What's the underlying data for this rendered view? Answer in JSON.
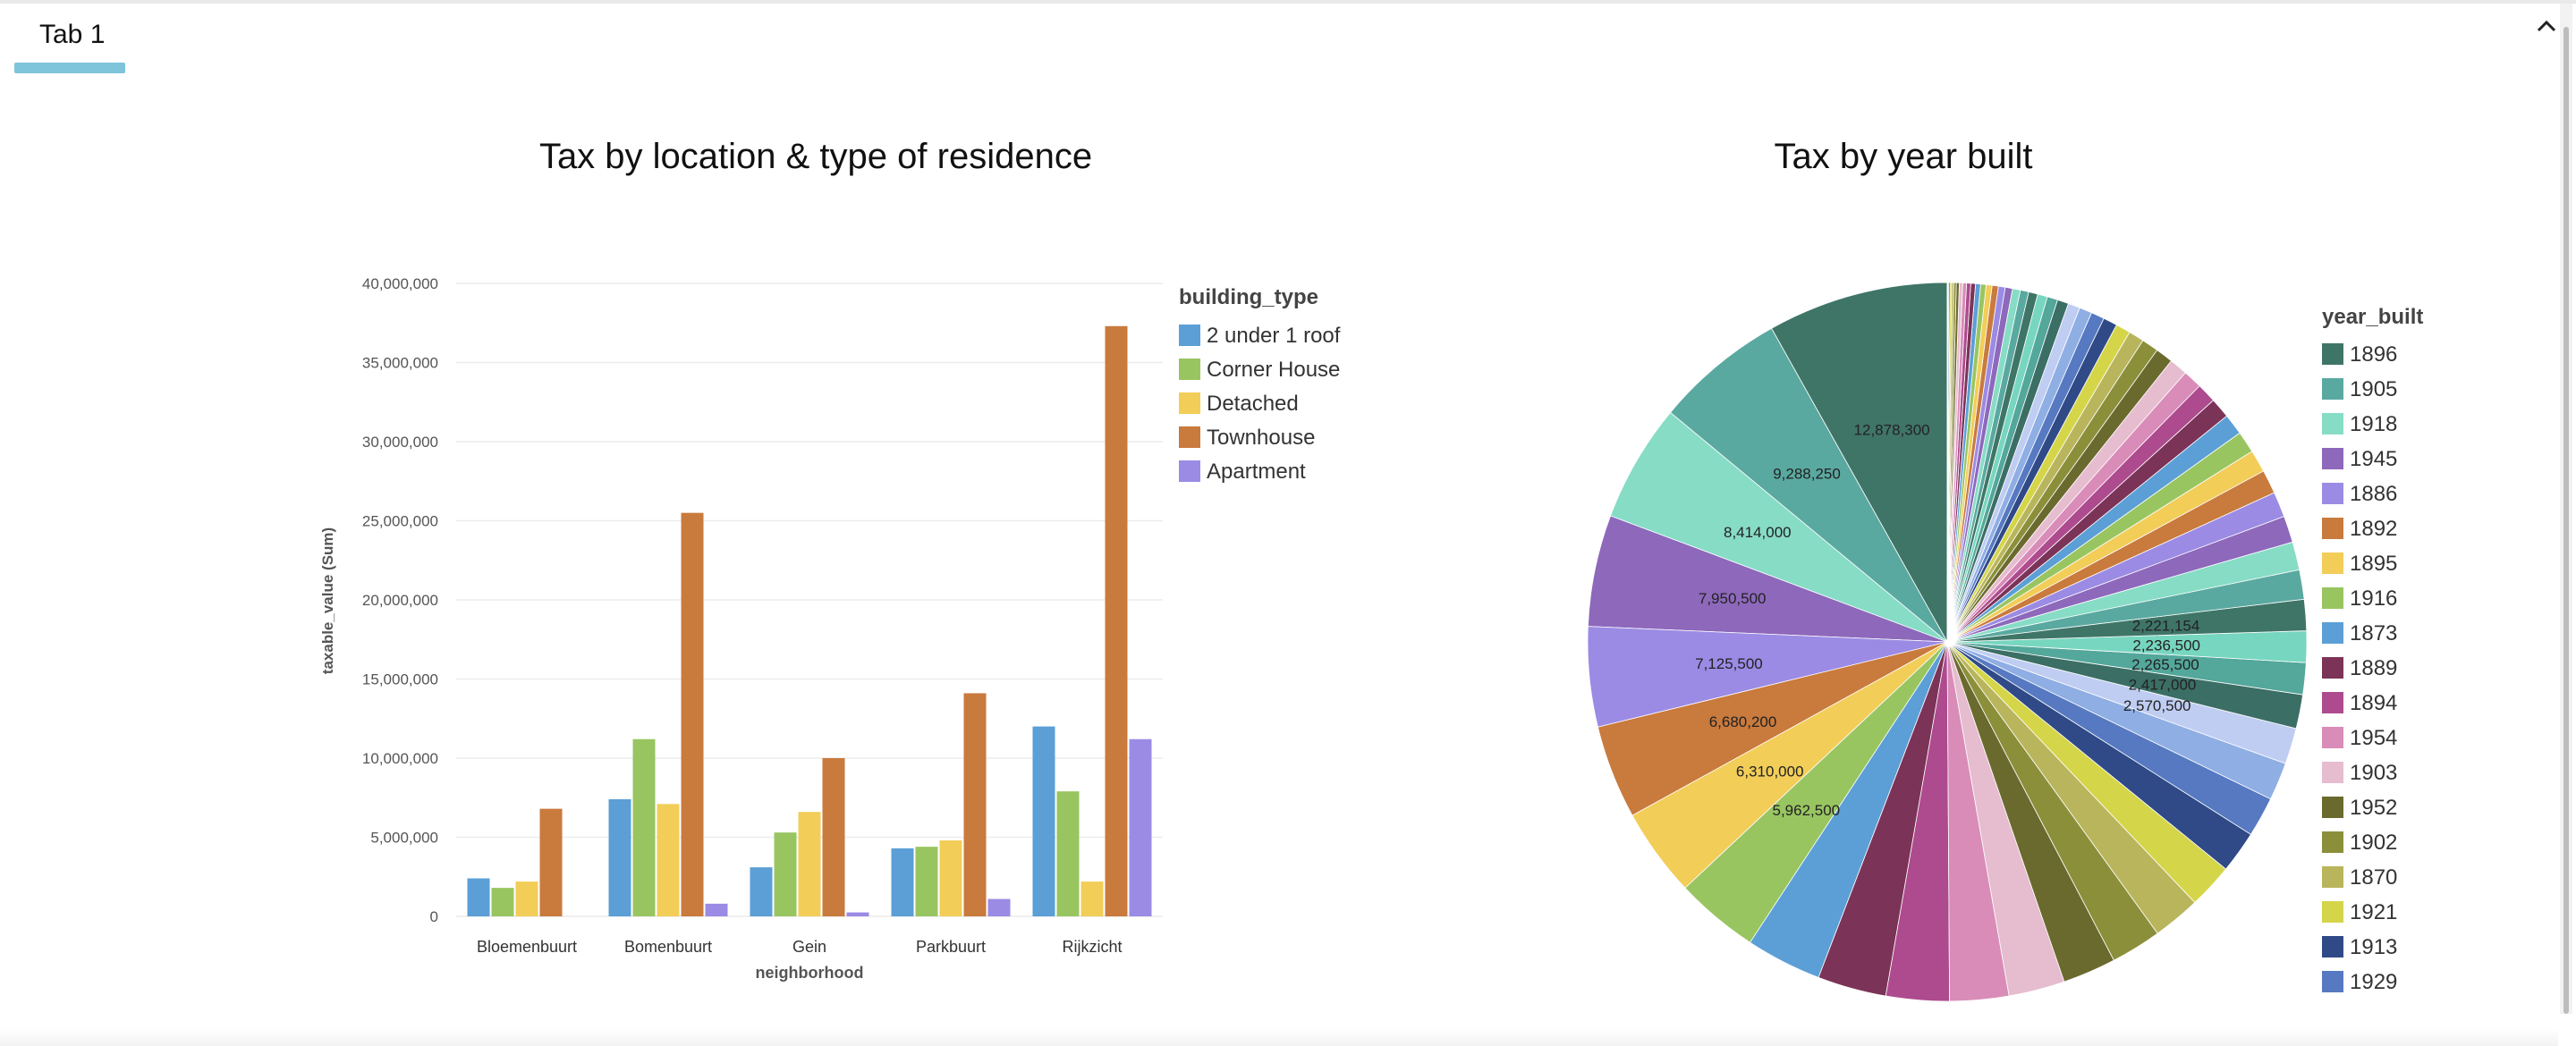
{
  "tabs": [
    {
      "label": "Tab 1"
    }
  ],
  "colors": {
    "tab_accent": "#7ec5dc"
  },
  "icons": {
    "collapse": "chevron-up-icon"
  },
  "chart_data": [
    {
      "type": "bar",
      "title": "Tax by location & type of residence",
      "xlabel": "neighborhood",
      "ylabel": "taxable_value (Sum)",
      "ylim": [
        0,
        40000000
      ],
      "yticks": [
        "0",
        "5,000,000",
        "10,000,000",
        "15,000,000",
        "20,000,000",
        "25,000,000",
        "30,000,000",
        "35,000,000",
        "40,000,000"
      ],
      "legend_title": "building_type",
      "legend_position": "right",
      "grid": true,
      "categories": [
        "Bloemenbuurt",
        "Bomenbuurt",
        "Gein",
        "Parkbuurt",
        "Rijkzicht"
      ],
      "series": [
        {
          "name": "2 under 1 roof",
          "color": "#5b9fd6",
          "values": [
            2400000,
            7400000,
            3100000,
            4300000,
            12000000
          ]
        },
        {
          "name": "Corner House",
          "color": "#99c561",
          "values": [
            1800000,
            11200000,
            5300000,
            4400000,
            7900000
          ]
        },
        {
          "name": "Detached",
          "color": "#f2cd58",
          "values": [
            2200000,
            7100000,
            6600000,
            4800000,
            2200000
          ]
        },
        {
          "name": "Townhouse",
          "color": "#c97a3d",
          "values": [
            6800000,
            25500000,
            10000000,
            14100000,
            37300000
          ]
        },
        {
          "name": "Apartment",
          "color": "#9b8be4",
          "values": [
            0,
            800000,
            250000,
            1100000,
            11200000
          ]
        }
      ]
    },
    {
      "type": "pie",
      "title": "Tax by year built",
      "legend_title": "year_built",
      "legend_position": "right",
      "labels": [
        "1896",
        "1905",
        "1918",
        "1945",
        "1886",
        "1892",
        "1895",
        "1916",
        "1873",
        "1889",
        "1894",
        "1954",
        "1903",
        "1952",
        "1902",
        "1870",
        "1921",
        "1913",
        "1929"
      ],
      "label_texts": [
        "12,878,300",
        "9,288,250",
        "8,414,000",
        "7,950,500",
        "7,125,500",
        "6,680,200",
        "6,310,000",
        "5,962,500",
        "2,570,500",
        "2,417,000",
        "2,265,500",
        "2,236,500",
        "2,221,154"
      ],
      "slices": [
        12878300,
        9288250,
        8414000,
        7950500,
        7125500,
        6680200,
        6310000,
        5962500,
        5400000,
        4900000,
        4500000,
        4200000,
        4000000,
        3800000,
        3600000,
        3400000,
        3200000,
        3000000,
        2850000,
        2700000,
        2570500,
        2417000,
        2265500,
        2236500,
        2221154,
        2100000,
        2000000,
        1900000,
        1800000,
        1700000,
        1600000,
        1550000,
        1500000,
        1450000,
        1400000,
        1350000,
        1300000,
        1250000,
        1200000,
        1100000,
        1050000,
        1000000,
        950000,
        900000,
        850000,
        800000,
        750000,
        700000,
        650000,
        600000,
        560000,
        520000,
        480000,
        450000,
        420000,
        390000,
        360000,
        330000,
        300000,
        270000,
        240000,
        210000,
        180000,
        150000,
        120000,
        90000,
        60000,
        40000
      ],
      "palette": [
        "#3f7567",
        "#5aa9a0",
        "#87dcc6",
        "#8d68bb",
        "#9b8be4",
        "#c97a3d",
        "#f2cd58",
        "#99c561",
        "#5b9fd6",
        "#7c3358",
        "#ad4b8e",
        "#d98cb8",
        "#e6bccf",
        "#6b6a2e",
        "#8c8f3a",
        "#b9b55c",
        "#d5d54a",
        "#2f4a86",
        "#5679c1",
        "#8faee4",
        "#c0cdf2",
        "#3b6e64",
        "#53a79b",
        "#77d6bf"
      ]
    }
  ]
}
